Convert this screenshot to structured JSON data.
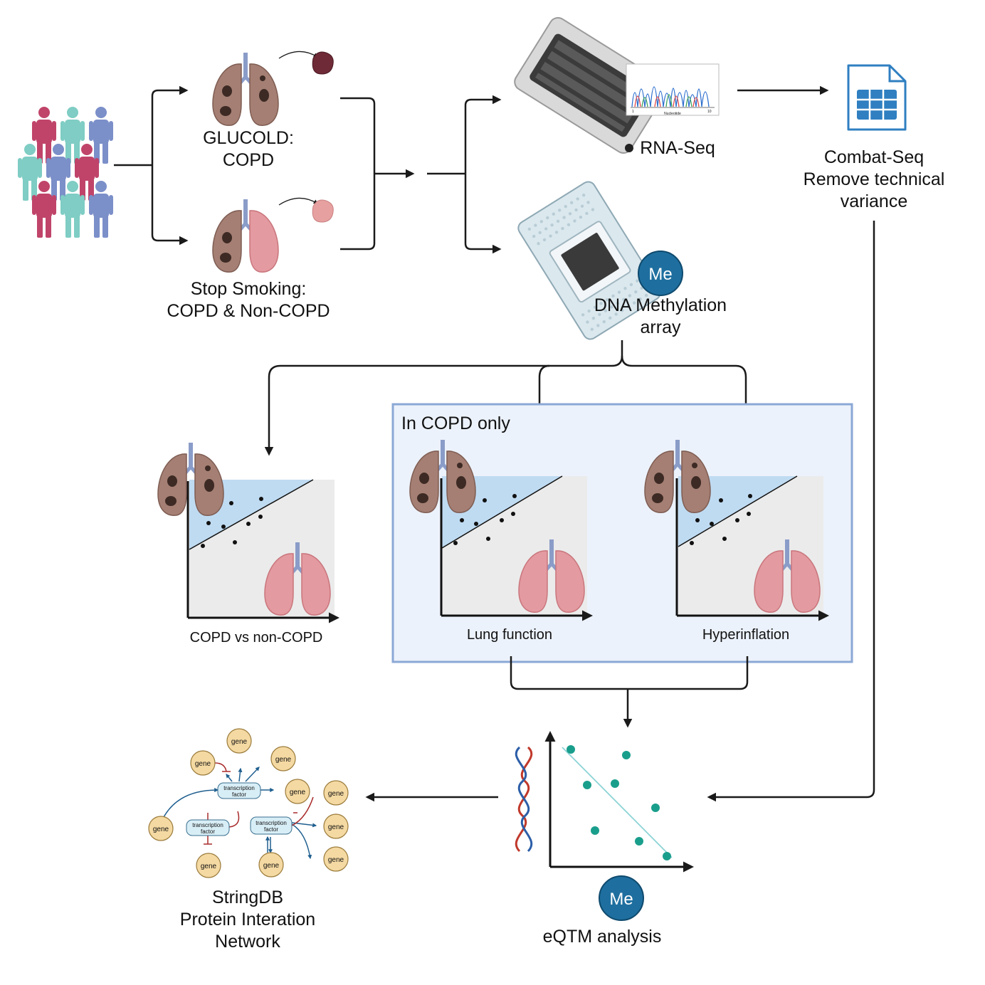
{
  "colors": {
    "person_red": "#c0446a",
    "person_teal": "#7fcdc4",
    "person_blue": "#7b8fc9",
    "lung_copd": "#a57f73",
    "lung_healthy": "#e39aa0",
    "plot_blue": "#bfdbf2",
    "plot_gray": "#ebebeb",
    "panel_bg": "#ecf2fb",
    "panel_border": "#8ba8d6",
    "me_badge": "#1e6f9f",
    "eqtm_dot": "#1a9e8c",
    "eqtm_line": "#8dd3d6",
    "gene_fill": "#f4d9a2",
    "tf_fill": "#d8eef6",
    "spreadsheet": "#2f7fc1"
  },
  "icons": {
    "cohort": "people-group-icon",
    "rnaseq": "sequencing-flowcell-icon",
    "spreadsheet": "spreadsheet-document-icon",
    "methylation": "methylation-array-chip-icon",
    "dna": "dna-helix-icon"
  },
  "studies": {
    "glucold_line1": "GLUCOLD:",
    "glucold_line2": "COPD",
    "stop_smoking_line1": "Stop Smoking:",
    "stop_smoking_line2": "COPD & Non-COPD"
  },
  "assays": {
    "rnaseq": "RNA-Seq",
    "methylation_line1": "DNA Methylation",
    "methylation_line2": "array",
    "me_badge": "Me",
    "chromatogram_xlabel": "Nucleotide",
    "chromatogram_tick_start": "1",
    "chromatogram_tick_end": "10"
  },
  "combat": {
    "line1": "Combat-Seq",
    "line2": "Remove technical",
    "line3": "variance"
  },
  "analyses": {
    "copd_only_label": "In COPD only",
    "copd_vs_non": "COPD vs non-COPD",
    "lung_function": "Lung function",
    "hyperinflation": "Hyperinflation"
  },
  "eqtm": {
    "label": "eQTM analysis",
    "me_badge": "Me"
  },
  "network": {
    "title_line1": "StringDB",
    "title_line2": "Protein Interation",
    "title_line3": "Network",
    "gene": "gene",
    "tf_line1": "transcription",
    "tf_line2": "factor"
  }
}
